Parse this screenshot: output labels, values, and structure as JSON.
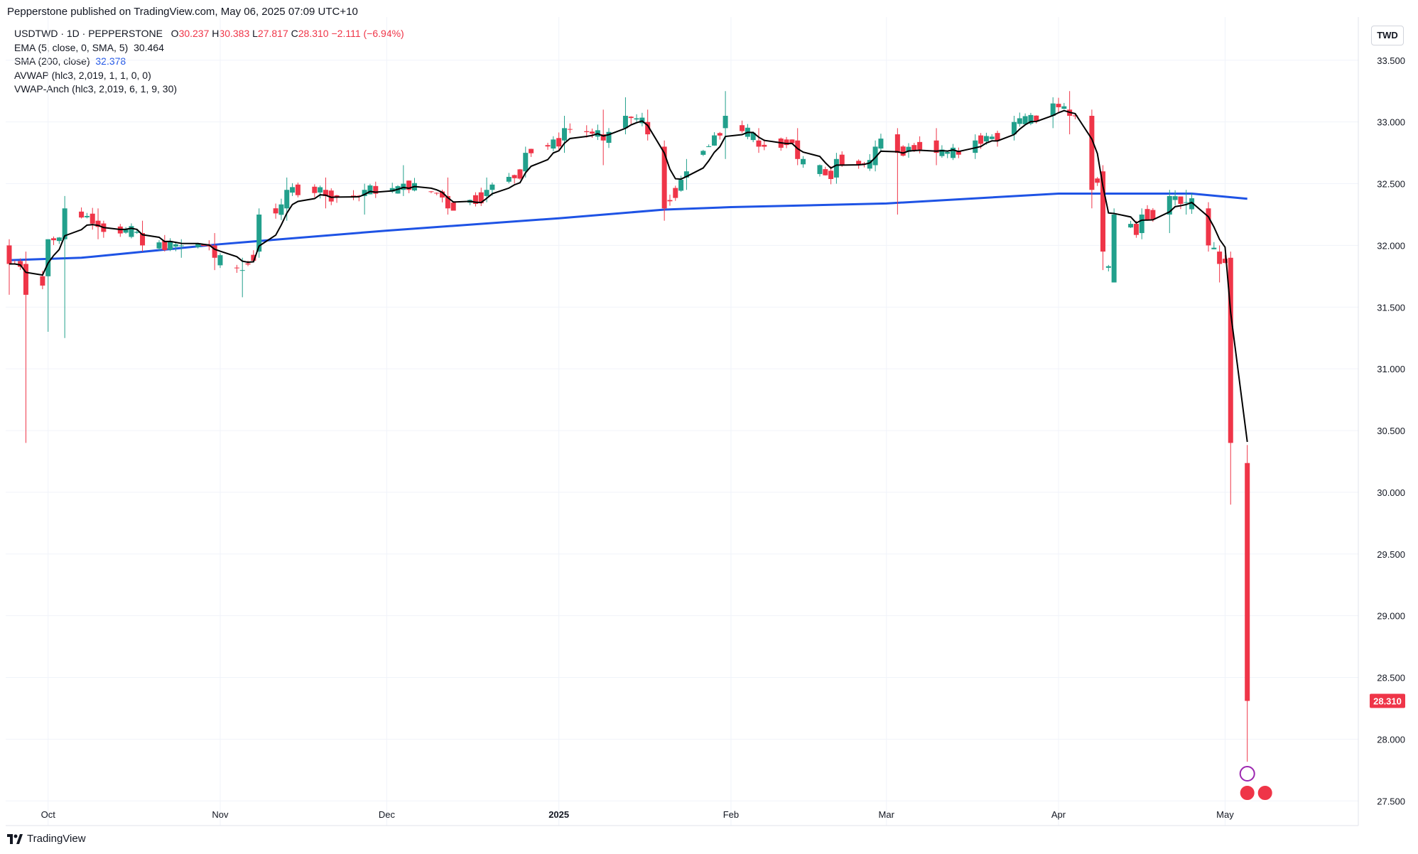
{
  "header": {
    "published_text": "Pepperstone published on TradingView.com, May 06, 2025 07:09 UTC+10"
  },
  "legend": {
    "symbol": "USDTWD · 1D · PEPPERSTONE",
    "o_label": "O",
    "o_value": "30.237",
    "h_label": "H",
    "h_value": "30.383",
    "l_label": "L",
    "l_value": "27.817",
    "c_label": "C",
    "c_value": "28.310",
    "change": "−2.111 (−6.94%)",
    "ema_label": "EMA (5, close, 0, SMA, 5)",
    "ema_value": "30.464",
    "sma_label": "SMA (200, close)",
    "sma_value": "32.378",
    "avwap_label": "AVWAP (hlc3, 2,019, 1, 1, 0, 0)",
    "vwap_label": "VWAP-Anch (hlc3, 2,019, 6, 1, 9, 30)"
  },
  "currency": "TWD",
  "footer": {
    "brand": "TradingView"
  },
  "colors": {
    "up": "#22a08c",
    "down": "#ef3548",
    "ema": "#000000",
    "sma": "#1e53e5",
    "grid": "#f0f3fa"
  },
  "chart_data": {
    "type": "candlestick",
    "symbol": "USDTWD",
    "interval": "1D",
    "ylim": [
      27.3,
      33.85
    ],
    "y_ticks": [
      "33.500",
      "33.000",
      "32.500",
      "32.000",
      "31.500",
      "31.000",
      "30.500",
      "30.000",
      "29.500",
      "29.000",
      "28.500",
      "28.000",
      "27.500"
    ],
    "x_ticks": [
      "Oct",
      "Nov",
      "Dec",
      "2025",
      "Feb",
      "Mar",
      "Apr",
      "May"
    ],
    "x_range": [
      "2024-09-24",
      "2025-05-25"
    ],
    "last_price": "28.310",
    "series": [
      {
        "name": "USDTWD",
        "ohlc_anchors": [
          [
            "2024-09-24",
            32.0,
            32.05,
            31.6,
            31.85
          ],
          [
            "2024-09-27",
            31.85,
            31.95,
            30.4,
            31.6
          ],
          [
            "2024-10-01",
            31.75,
            32.05,
            31.3,
            32.05
          ],
          [
            "2024-10-04",
            32.05,
            32.4,
            31.25,
            32.3
          ],
          [
            "2024-10-10",
            32.2,
            32.3,
            32.05,
            32.15
          ],
          [
            "2024-10-18",
            32.1,
            32.2,
            31.95,
            32.0
          ],
          [
            "2024-10-25",
            32.0,
            32.05,
            31.9,
            32.0
          ],
          [
            "2024-10-31",
            32.0,
            32.1,
            31.8,
            31.9
          ],
          [
            "2024-11-05",
            31.8,
            31.9,
            31.58,
            31.8
          ],
          [
            "2024-11-08",
            31.95,
            32.3,
            31.9,
            32.25
          ],
          [
            "2024-11-13",
            32.3,
            32.55,
            32.2,
            32.45
          ],
          [
            "2024-11-20",
            32.45,
            32.55,
            32.3,
            32.4
          ],
          [
            "2024-11-27",
            32.4,
            32.5,
            32.25,
            32.45
          ],
          [
            "2024-12-04",
            32.45,
            32.65,
            32.4,
            32.5
          ],
          [
            "2024-12-12",
            32.4,
            32.55,
            32.25,
            32.3
          ],
          [
            "2024-12-19",
            32.4,
            32.55,
            32.35,
            32.45
          ],
          [
            "2024-12-26",
            32.6,
            32.8,
            32.55,
            32.75
          ],
          [
            "2025-01-02",
            32.85,
            33.05,
            32.75,
            32.95
          ],
          [
            "2025-01-09",
            32.9,
            33.1,
            32.65,
            32.85
          ],
          [
            "2025-01-13",
            32.95,
            33.2,
            32.9,
            33.05
          ],
          [
            "2025-01-17",
            33.0,
            33.1,
            32.85,
            32.9
          ],
          [
            "2025-01-20",
            32.8,
            32.85,
            32.2,
            32.3
          ],
          [
            "2025-01-24",
            32.55,
            32.7,
            32.45,
            32.6
          ],
          [
            "2025-01-31",
            32.95,
            33.25,
            32.7,
            33.05
          ],
          [
            "2025-02-06",
            32.85,
            32.95,
            32.75,
            32.8
          ],
          [
            "2025-02-13",
            32.85,
            32.95,
            32.65,
            32.7
          ],
          [
            "2025-02-20",
            32.55,
            32.75,
            32.5,
            32.7
          ],
          [
            "2025-02-27",
            32.65,
            32.85,
            32.6,
            32.8
          ],
          [
            "2025-03-03",
            32.9,
            32.95,
            32.25,
            32.75
          ],
          [
            "2025-03-10",
            32.85,
            32.95,
            32.65,
            32.75
          ],
          [
            "2025-03-17",
            32.75,
            32.9,
            32.7,
            32.85
          ],
          [
            "2025-03-24",
            32.9,
            33.05,
            32.85,
            33.0
          ],
          [
            "2025-03-31",
            33.05,
            33.2,
            32.95,
            33.15
          ],
          [
            "2025-04-03",
            33.1,
            33.25,
            32.9,
            33.05
          ],
          [
            "2025-04-07",
            33.05,
            33.1,
            32.3,
            32.45
          ],
          [
            "2025-04-09",
            32.6,
            32.65,
            31.8,
            31.95
          ],
          [
            "2025-04-11",
            31.7,
            32.3,
            31.7,
            32.25
          ],
          [
            "2025-04-16",
            32.1,
            32.3,
            32.05,
            32.25
          ],
          [
            "2025-04-21",
            32.25,
            32.45,
            32.1,
            32.4
          ],
          [
            "2025-04-24",
            32.35,
            32.45,
            32.25,
            32.35
          ],
          [
            "2025-04-28",
            32.3,
            32.35,
            31.95,
            32.0
          ],
          [
            "2025-04-30",
            31.95,
            32.0,
            31.7,
            31.85
          ],
          [
            "2025-05-02",
            31.9,
            31.95,
            29.9,
            30.4
          ],
          [
            "2025-05-05",
            30.237,
            30.383,
            27.817,
            28.31
          ]
        ]
      },
      {
        "name": "EMA (5, close, 0, SMA, 5)",
        "last": 30.464
      },
      {
        "name": "SMA (200, close)",
        "anchors": [
          [
            "2024-09-24",
            31.88
          ],
          [
            "2024-10-07",
            31.9
          ],
          [
            "2024-11-01",
            32.01
          ],
          [
            "2024-12-01",
            32.12
          ],
          [
            "2025-01-01",
            32.22
          ],
          [
            "2025-01-20",
            32.29
          ],
          [
            "2025-02-01",
            32.31
          ],
          [
            "2025-03-01",
            32.34
          ],
          [
            "2025-04-01",
            32.42
          ],
          [
            "2025-04-25",
            32.42
          ],
          [
            "2025-05-05",
            32.378
          ]
        ]
      }
    ]
  }
}
